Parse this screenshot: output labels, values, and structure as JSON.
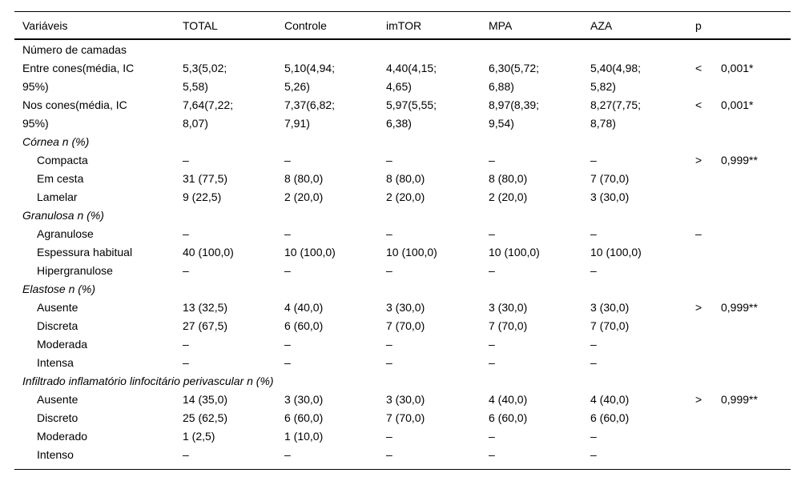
{
  "table": {
    "columns": [
      "Variáveis",
      "TOTAL",
      "Controle",
      "imTOR",
      "MPA",
      "AZA",
      "p"
    ],
    "rows": [
      {
        "type": "section",
        "italic": false,
        "label": "Número de camadas"
      },
      {
        "type": "data",
        "indent": false,
        "label": "Entre cones(média, IC\n95%)",
        "values": [
          "5,3(5,02;\n5,58)",
          "5,10(4,94;\n5,26)",
          "4,40(4,15;\n4,65)",
          "6,30(5,72;\n6,88)",
          "5,40(4,98;\n5,82)"
        ],
        "p_sign": "<",
        "p_value": "0,001*"
      },
      {
        "type": "data",
        "indent": false,
        "label": "Nos cones(média, IC\n95%)",
        "values": [
          "7,64(7,22;\n8,07)",
          "7,37(6,82;\n7,91)",
          "5,97(5,55;\n6,38)",
          "8,97(8,39;\n9,54)",
          "8,27(7,75;\n8,78)"
        ],
        "p_sign": "<",
        "p_value": "0,001*"
      },
      {
        "type": "section",
        "italic": true,
        "label": "Córnea n (%)"
      },
      {
        "type": "data",
        "indent": true,
        "label": "Compacta",
        "values": [
          "–",
          "–",
          "–",
          "–",
          "–"
        ],
        "p_sign": ">",
        "p_value": "0,999**"
      },
      {
        "type": "data",
        "indent": true,
        "label": "Em cesta",
        "values": [
          "31 (77,5)",
          "8 (80,0)",
          "8 (80,0)",
          "8 (80,0)",
          "7 (70,0)"
        ]
      },
      {
        "type": "data",
        "indent": true,
        "label": "Lamelar",
        "values": [
          "9 (22,5)",
          "2 (20,0)",
          "2 (20,0)",
          "2 (20,0)",
          "3 (30,0)"
        ]
      },
      {
        "type": "section",
        "italic": true,
        "label": "Granulosa n (%)"
      },
      {
        "type": "data",
        "indent": true,
        "label": "Agranulose",
        "values": [
          "–",
          "–",
          "–",
          "–",
          "–"
        ],
        "p_sign": "–",
        "p_value": ""
      },
      {
        "type": "data",
        "indent": true,
        "label": "Espessura habitual",
        "values": [
          "40 (100,0)",
          "10 (100,0)",
          "10 (100,0)",
          "10 (100,0)",
          "10 (100,0)"
        ]
      },
      {
        "type": "data",
        "indent": true,
        "label": "Hipergranulose",
        "values": [
          "–",
          "–",
          "–",
          "–",
          "–"
        ]
      },
      {
        "type": "section",
        "italic": true,
        "label": "Elastose n (%)"
      },
      {
        "type": "data",
        "indent": true,
        "label": "Ausente",
        "values": [
          "13 (32,5)",
          "4 (40,0)",
          "3 (30,0)",
          "3 (30,0)",
          "3 (30,0)"
        ],
        "p_sign": ">",
        "p_value": "0,999**"
      },
      {
        "type": "data",
        "indent": true,
        "label": "Discreta",
        "values": [
          "27 (67,5)",
          "6 (60,0)",
          "7 (70,0)",
          "7 (70,0)",
          "7 (70,0)"
        ]
      },
      {
        "type": "data",
        "indent": true,
        "label": "Moderada",
        "values": [
          "–",
          "–",
          "–",
          "–",
          "–"
        ]
      },
      {
        "type": "data",
        "indent": true,
        "label": "Intensa",
        "values": [
          "–",
          "–",
          "–",
          "–",
          "–"
        ]
      },
      {
        "type": "section",
        "italic": true,
        "label": "Infiltrado inflamatório linfocitário perivascular n (%)"
      },
      {
        "type": "data",
        "indent": true,
        "label": "Ausente",
        "values": [
          "14 (35,0)",
          "3 (30,0)",
          "3 (30,0)",
          "4 (40,0)",
          "4 (40,0)"
        ],
        "p_sign": ">",
        "p_value": "0,999**"
      },
      {
        "type": "data",
        "indent": true,
        "label": "Discreto",
        "values": [
          "25 (62,5)",
          "6 (60,0)",
          "7 (70,0)",
          "6 (60,0)",
          "6 (60,0)"
        ]
      },
      {
        "type": "data",
        "indent": true,
        "label": "Moderado",
        "values": [
          "1 (2,5)",
          "1 (10,0)",
          "–",
          "–",
          "–"
        ]
      },
      {
        "type": "data",
        "indent": true,
        "label": "Intenso",
        "values": [
          "–",
          "–",
          "–",
          "–",
          "–"
        ]
      }
    ]
  },
  "colors": {
    "text": "#000000",
    "rule": "#000000",
    "background": "#ffffff"
  }
}
